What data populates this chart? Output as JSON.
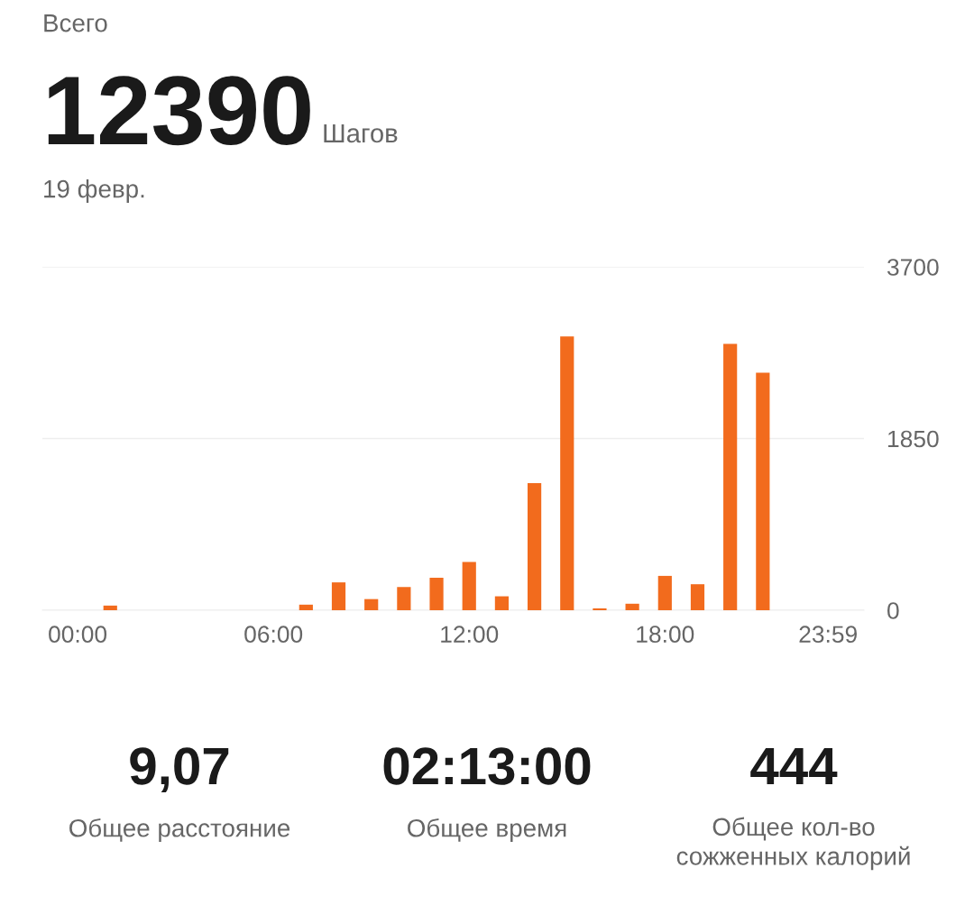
{
  "chart_data": {
    "type": "bar",
    "title": "Всего",
    "categories": [
      "00:00",
      null,
      null,
      null,
      null,
      null,
      "06:00",
      null,
      null,
      null,
      null,
      null,
      "12:00",
      null,
      null,
      null,
      null,
      null,
      "18:00",
      null,
      null,
      null,
      null,
      "23:59"
    ],
    "values": [
      0,
      50,
      0,
      0,
      0,
      0,
      0,
      60,
      300,
      120,
      250,
      350,
      520,
      150,
      1370,
      2950,
      20,
      70,
      370,
      280,
      2870,
      2560,
      0,
      0
    ],
    "color": "#f26b1d",
    "ylim": [
      0,
      3700
    ],
    "yticks": [
      0,
      1850,
      3700
    ],
    "grid": "y",
    "annotations": [
      "12390",
      "Шагов",
      "19 февр.",
      "9,07",
      "Общее расстояние",
      "02:13:00",
      "Общее время",
      "444",
      "Общее кол-во\nсожженных калорий"
    ]
  }
}
